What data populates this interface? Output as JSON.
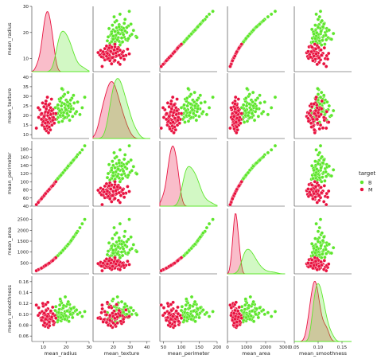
{
  "chart_data": {
    "type": "scatter",
    "subtype": "pairplot",
    "variables": [
      "mean_radius",
      "mean_texture",
      "mean_perimeter",
      "mean_area",
      "mean_smoothness"
    ],
    "legend": {
      "title": "target",
      "placement": "right",
      "entries": [
        {
          "label": "B",
          "color": "#5ee62c"
        },
        {
          "label": "M",
          "color": "#e8123f"
        }
      ]
    },
    "axes": {
      "mean_radius": {
        "range": [
          5,
          30
        ],
        "ticks": [
          10,
          20,
          30
        ]
      },
      "mean_texture": {
        "range": [
          8,
          42
        ],
        "ticks": [
          10,
          15,
          20,
          25,
          30,
          35,
          40
        ],
        "xticks": [
          20,
          30,
          40
        ]
      },
      "mean_perimeter": {
        "range": [
          40,
          200
        ],
        "ticks": [
          40,
          60,
          80,
          100,
          120,
          140,
          160,
          180
        ],
        "xticks": [
          50,
          100,
          150,
          200
        ]
      },
      "mean_area": {
        "range": [
          0,
          3000
        ],
        "ticks": [
          500,
          1000,
          1500,
          2000,
          2500
        ],
        "xticks": [
          0,
          1000,
          2000,
          3000
        ]
      },
      "mean_smoothness": {
        "range": [
          0.05,
          0.17
        ],
        "ticks": [
          0.06,
          0.08,
          0.1,
          0.12,
          0.14,
          0.16
        ],
        "xticks": [
          0.05,
          0.1,
          0.15
        ]
      }
    },
    "diagonal": "kde",
    "grid": false,
    "series": [
      {
        "name": "B",
        "color": "#5ee62c",
        "points": [
          [
            17.0,
            22.0,
            112.0,
            900,
            0.1
          ],
          [
            19.5,
            24.0,
            128.0,
            1180,
            0.105
          ],
          [
            21.0,
            20.0,
            140.0,
            1350,
            0.095
          ],
          [
            18.2,
            26.5,
            120.0,
            1030,
            0.11
          ],
          [
            16.5,
            19.0,
            108.0,
            850,
            0.092
          ],
          [
            23.0,
            23.5,
            152.0,
            1650,
            0.102
          ],
          [
            20.0,
            28.0,
            132.0,
            1250,
            0.115
          ],
          [
            17.8,
            21.5,
            116.0,
            980,
            0.088
          ],
          [
            19.0,
            18.5,
            125.0,
            1130,
            0.098
          ],
          [
            22.0,
            25.0,
            146.0,
            1500,
            0.108
          ],
          [
            25.0,
            27.0,
            166.0,
            1950,
            0.1
          ],
          [
            18.7,
            30.0,
            123.0,
            1100,
            0.112
          ],
          [
            16.0,
            24.5,
            105.0,
            800,
            0.104
          ],
          [
            20.5,
            22.5,
            135.0,
            1300,
            0.094
          ],
          [
            21.5,
            17.5,
            142.0,
            1420,
            0.118
          ],
          [
            17.3,
            27.5,
            114.0,
            940,
            0.097
          ],
          [
            24.0,
            21.0,
            158.0,
            1800,
            0.106
          ],
          [
            19.8,
            25.5,
            130.0,
            1220,
            0.091
          ],
          [
            15.5,
            20.5,
            102.0,
            760,
            0.114
          ],
          [
            18.0,
            23.0,
            118.0,
            1010,
            0.121
          ],
          [
            22.5,
            29.0,
            148.0,
            1580,
            0.099
          ],
          [
            16.8,
            16.5,
            110.0,
            880,
            0.103
          ],
          [
            20.8,
            32.0,
            137.0,
            1340,
            0.107
          ],
          [
            27.0,
            24.0,
            178.0,
            2300,
            0.096
          ],
          [
            17.6,
            19.5,
            115.0,
            960,
            0.125
          ],
          [
            19.2,
            26.0,
            126.0,
            1150,
            0.093
          ],
          [
            21.8,
            22.0,
            144.0,
            1460,
            0.111
          ],
          [
            18.5,
            33.5,
            121.0,
            1060,
            0.101
          ],
          [
            16.2,
            21.0,
            106.0,
            820,
            0.086
          ],
          [
            23.5,
            26.5,
            155.0,
            1720,
            0.113
          ],
          [
            20.2,
            19.0,
            133.0,
            1270,
            0.09
          ],
          [
            17.0,
            28.5,
            111.0,
            910,
            0.109
          ],
          [
            19.6,
            22.5,
            129.0,
            1200,
            0.132
          ],
          [
            28.1,
            29.5,
            188.0,
            2500,
            0.105
          ],
          [
            15.8,
            18.0,
            104.0,
            790,
            0.098
          ],
          [
            21.2,
            24.0,
            139.0,
            1380,
            0.087
          ],
          [
            18.9,
            21.5,
            124.0,
            1120,
            0.116
          ],
          [
            22.8,
            19.5,
            150.0,
            1620,
            0.094
          ],
          [
            17.9,
            25.0,
            117.0,
            1000,
            0.102
          ],
          [
            20.6,
            27.0,
            136.0,
            1320,
            0.119
          ],
          [
            16.6,
            23.5,
            109.0,
            860,
            0.095
          ],
          [
            19.3,
            31.0,
            127.0,
            1160,
            0.1
          ],
          [
            24.5,
            22.0,
            161.0,
            1880,
            0.108
          ],
          [
            18.3,
            17.0,
            120.0,
            1040,
            0.092
          ],
          [
            21.6,
            26.0,
            142.0,
            1440,
            0.104
          ],
          [
            17.4,
            20.0,
            114.0,
            950,
            0.128
          ],
          [
            19.9,
            23.0,
            131.0,
            1240,
            0.097
          ],
          [
            23.2,
            30.5,
            153.0,
            1690,
            0.112
          ],
          [
            16.4,
            25.5,
            108.0,
            840,
            0.089
          ],
          [
            20.4,
            21.0,
            134.0,
            1290,
            0.106
          ],
          [
            18.1,
            34.0,
            119.0,
            1020,
            0.099
          ],
          [
            26.0,
            20.5,
            171.0,
            2120,
            0.103
          ],
          [
            17.2,
            22.5,
            113.0,
            930,
            0.117
          ],
          [
            19.4,
            19.0,
            128.0,
            1170,
            0.091
          ],
          [
            21.9,
            28.0,
            144.0,
            1480,
            0.1
          ],
          [
            15.2,
            24.0,
            100.0,
            740,
            0.107
          ],
          [
            20.9,
            25.0,
            138.0,
            1360,
            0.123
          ],
          [
            18.6,
            20.0,
            122.0,
            1080,
            0.096
          ],
          [
            22.2,
            23.5,
            146.0,
            1530,
            0.11
          ],
          [
            17.7,
            29.0,
            116.0,
            970,
            0.094
          ]
        ]
      },
      {
        "name": "M",
        "color": "#e8123f",
        "points": [
          [
            11.0,
            18.0,
            70.0,
            380,
            0.095
          ],
          [
            12.5,
            16.0,
            80.0,
            480,
            0.088
          ],
          [
            10.2,
            20.0,
            65.0,
            330,
            0.1
          ],
          [
            13.0,
            22.0,
            84.0,
            520,
            0.092
          ],
          [
            9.5,
            15.0,
            61.0,
            280,
            0.105
          ],
          [
            11.8,
            25.0,
            76.0,
            430,
            0.083
          ],
          [
            14.0,
            19.0,
            90.0,
            600,
            0.097
          ],
          [
            12.0,
            13.5,
            77.0,
            445,
            0.11
          ],
          [
            10.8,
            21.5,
            69.0,
            360,
            0.078
          ],
          [
            13.5,
            17.0,
            87.0,
            560,
            0.09
          ],
          [
            8.5,
            23.0,
            54.0,
            220,
            0.102
          ],
          [
            11.4,
            12.0,
            73.0,
            405,
            0.094
          ],
          [
            12.8,
            26.0,
            82.0,
            505,
            0.086
          ],
          [
            10.0,
            18.5,
            64.0,
            310,
            0.115
          ],
          [
            14.5,
            21.0,
            93.0,
            650,
            0.081
          ],
          [
            11.6,
            15.5,
            74.0,
            420,
            0.099
          ],
          [
            9.0,
            20.5,
            57.0,
            250,
            0.093
          ],
          [
            13.2,
            24.0,
            85.0,
            540,
            0.104
          ],
          [
            12.2,
            19.5,
            78.0,
            460,
            0.076
          ],
          [
            10.5,
            14.0,
            67.0,
            345,
            0.089
          ],
          [
            15.0,
            18.0,
            97.0,
            700,
            0.098
          ],
          [
            11.2,
            27.5,
            72.0,
            395,
            0.108
          ],
          [
            12.6,
            22.5,
            81.0,
            495,
            0.084
          ],
          [
            9.8,
            16.5,
            62.0,
            295,
            0.12
          ],
          [
            13.8,
            15.0,
            89.0,
            590,
            0.091
          ],
          [
            11.9,
            20.0,
            76.0,
            440,
            0.096
          ],
          [
            10.3,
            24.5,
            66.0,
            335,
            0.087
          ],
          [
            14.2,
            23.0,
            91.0,
            620,
            0.101
          ],
          [
            12.3,
            11.0,
            79.0,
            470,
            0.093
          ],
          [
            8.0,
            19.0,
            51.0,
            200,
            0.112
          ],
          [
            11.5,
            17.5,
            74.0,
            415,
            0.082
          ],
          [
            13.6,
            28.5,
            88.0,
            575,
            0.095
          ],
          [
            10.7,
            13.0,
            68.0,
            355,
            0.103
          ],
          [
            12.9,
            18.0,
            83.0,
            515,
            0.088
          ],
          [
            9.3,
            21.0,
            59.0,
            265,
            0.091
          ],
          [
            14.8,
            16.0,
            95.0,
            680,
            0.085
          ],
          [
            11.1,
            22.0,
            71.0,
            385,
            0.118
          ],
          [
            12.4,
            25.5,
            80.0,
            485,
            0.097
          ],
          [
            10.1,
            17.0,
            64.0,
            320,
            0.08
          ],
          [
            13.3,
            20.5,
            86.0,
            550,
            0.106
          ],
          [
            11.7,
            14.5,
            75.0,
            435,
            0.09
          ],
          [
            9.7,
            26.5,
            62.0,
            290,
            0.094
          ],
          [
            12.1,
            21.5,
            78.0,
            455,
            0.1
          ],
          [
            14.4,
            19.0,
            92.0,
            640,
            0.087
          ],
          [
            10.9,
            16.0,
            70.0,
            370,
            0.099
          ],
          [
            13.1,
            12.5,
            84.0,
            530,
            0.092
          ],
          [
            11.3,
            23.5,
            73.0,
            400,
            0.107
          ],
          [
            12.7,
            18.5,
            82.0,
            500,
            0.079
          ],
          [
            7.8,
            24.0,
            49.0,
            190,
            0.098
          ],
          [
            10.6,
            20.0,
            68.0,
            350,
            0.084
          ],
          [
            15.5,
            21.0,
            100.0,
            740,
            0.093
          ],
          [
            11.8,
            29.5,
            76.0,
            425,
            0.096
          ],
          [
            12.0,
            16.5,
            77.0,
            450,
            0.122
          ],
          [
            9.2,
            18.0,
            58.0,
            260,
            0.089
          ],
          [
            13.7,
            22.5,
            88.0,
            580,
            0.095
          ],
          [
            10.4,
            19.5,
            66.0,
            340,
            0.102
          ],
          [
            12.6,
            14.0,
            81.0,
            490,
            0.086
          ],
          [
            11.0,
            26.0,
            71.0,
            390,
            0.091
          ],
          [
            14.1,
            17.5,
            90.0,
            610,
            0.113
          ],
          [
            6.98,
            13.4,
            43.8,
            143,
            0.117
          ]
        ]
      }
    ]
  }
}
